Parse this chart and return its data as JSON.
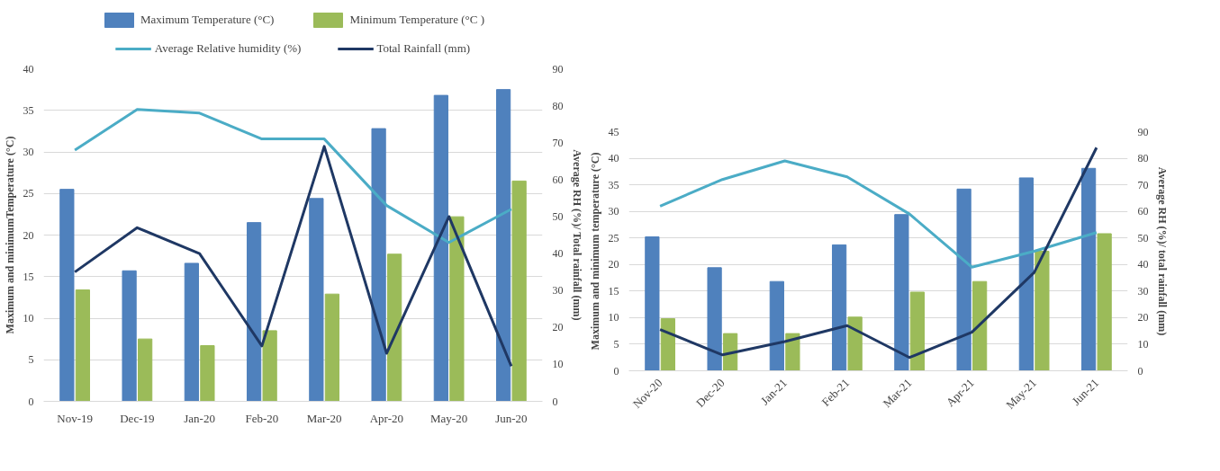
{
  "chart_data": [
    {
      "type": "bar",
      "categories": [
        "Nov-19",
        "Dec-19",
        "Jan-20",
        "Feb-20",
        "Mar-20",
        "Apr-20",
        "May-20",
        "Jun-20"
      ],
      "ylabel": "Maximum and minimumTemperature (°C)",
      "y2label": "Average RH (%)/ Total rainfall (mm)",
      "ylim": [
        0,
        40
      ],
      "yticks": [
        0,
        5,
        10,
        15,
        20,
        25,
        30,
        35,
        40
      ],
      "y2lim": [
        0,
        90
      ],
      "y2ticks": [
        0,
        10,
        20,
        30,
        40,
        50,
        60,
        70,
        80,
        90
      ],
      "grid": "y",
      "legend": "top",
      "series": [
        {
          "name": "Maximum Temperature (°C)",
          "color": "#4f81bd",
          "values": [
            25.5,
            15.7,
            16.6,
            21.5,
            24.4,
            32.8,
            36.8,
            37.5
          ]
        },
        {
          "name": "Minimum Temperature (°C )",
          "color": "#9bbb59",
          "values": [
            13.4,
            7.5,
            6.7,
            8.5,
            12.9,
            17.7,
            22.2,
            26.5
          ]
        },
        {
          "name": "Average Relative humidity (%)",
          "type": "line",
          "axis": "y2",
          "color": "#4bacc6",
          "values": [
            68,
            79,
            78,
            71,
            71,
            53,
            43,
            52
          ]
        },
        {
          "name": "Total Rainfall (mm)",
          "type": "line",
          "axis": "y2",
          "color": "#1f3864",
          "values": [
            35,
            47,
            40,
            15,
            69,
            13,
            50,
            9.5
          ]
        }
      ]
    },
    {
      "type": "bar",
      "categories": [
        "Nov-20",
        "Dec-20",
        "Jan-21",
        "Feb-21",
        "Mar-21",
        "Apr-21",
        "May-21",
        "Jun-21"
      ],
      "ylabel": "Maximum and minimum temperature (°C)",
      "y2label": "Average RH (%)/ total rainfall (mm)",
      "ylim": [
        0,
        45
      ],
      "yticks": [
        0,
        5,
        10,
        15,
        20,
        25,
        30,
        35,
        40,
        45
      ],
      "y2lim": [
        0,
        90
      ],
      "y2ticks": [
        0,
        10,
        20,
        30,
        40,
        50,
        60,
        70,
        80,
        90
      ],
      "grid": "y",
      "series": [
        {
          "color": "#4f81bd",
          "values": [
            25.2,
            19.4,
            16.8,
            23.7,
            29.4,
            34.2,
            36.3,
            38.1
          ]
        },
        {
          "color": "#9bbb59",
          "values": [
            9.8,
            7,
            7,
            10.1,
            14.8,
            16.8,
            22.5,
            25.8
          ]
        },
        {
          "type": "line",
          "axis": "y2",
          "color": "#4bacc6",
          "values": [
            62,
            72,
            79,
            73,
            59,
            39,
            45,
            52
          ]
        },
        {
          "type": "line",
          "axis": "y2",
          "color": "#1f3864",
          "values": [
            15.5,
            6,
            11,
            17,
            5,
            14.5,
            37,
            84
          ]
        }
      ]
    }
  ]
}
